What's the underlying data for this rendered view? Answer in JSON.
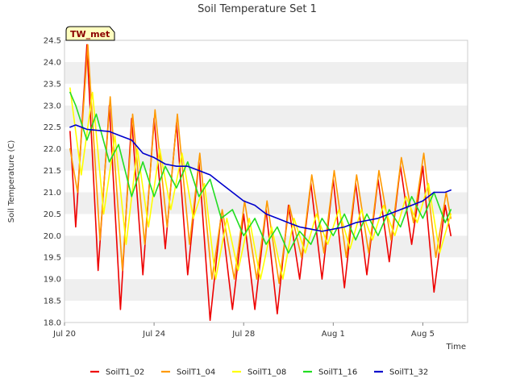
{
  "chart_data": {
    "type": "line",
    "title": "Soil Temperature Set 1",
    "xlabel": "Time",
    "ylabel": "Soil Temperature (C)",
    "badge": "TW_met",
    "xlim": [
      "2021-07-20",
      "2021-08-07"
    ],
    "ylim": [
      18.0,
      24.5
    ],
    "yticks": [
      18.0,
      18.5,
      19.0,
      19.5,
      20.0,
      20.5,
      21.0,
      21.5,
      22.0,
      22.5,
      23.0,
      23.5,
      24.0,
      24.5
    ],
    "xticks": [
      {
        "date": "2021-07-20",
        "label": "Jul 20"
      },
      {
        "date": "2021-07-24",
        "label": "Jul 24"
      },
      {
        "date": "2021-07-28",
        "label": "Jul 28"
      },
      {
        "date": "2021-08-01",
        "label": "Aug 1"
      },
      {
        "date": "2021-08-05",
        "label": "Aug 5"
      }
    ],
    "grid": "horizontal bands",
    "legend_position": "bottom",
    "series": [
      {
        "name": "SoilT1_02",
        "color": "#ee0000",
        "points": [
          [
            "2021-07-20 06:00",
            22.4
          ],
          [
            "2021-07-20 12:00",
            20.2
          ],
          [
            "2021-07-21 00:00",
            24.4
          ],
          [
            "2021-07-21 12:00",
            19.2
          ],
          [
            "2021-07-22 00:00",
            23.0
          ],
          [
            "2021-07-22 12:00",
            18.3
          ],
          [
            "2021-07-23 00:00",
            22.7
          ],
          [
            "2021-07-23 12:00",
            19.1
          ],
          [
            "2021-07-24 00:00",
            22.7
          ],
          [
            "2021-07-24 12:00",
            19.7
          ],
          [
            "2021-07-25 00:00",
            22.6
          ],
          [
            "2021-07-25 12:00",
            19.1
          ],
          [
            "2021-07-26 00:00",
            21.7
          ],
          [
            "2021-07-26 12:00",
            18.05
          ],
          [
            "2021-07-27 00:00",
            20.5
          ],
          [
            "2021-07-27 12:00",
            18.3
          ],
          [
            "2021-07-28 00:00",
            20.5
          ],
          [
            "2021-07-28 12:00",
            18.3
          ],
          [
            "2021-07-29 00:00",
            20.6
          ],
          [
            "2021-07-29 12:00",
            18.2
          ],
          [
            "2021-07-30 00:00",
            20.7
          ],
          [
            "2021-07-30 12:00",
            19.0
          ],
          [
            "2021-07-31 00:00",
            21.2
          ],
          [
            "2021-07-31 12:00",
            19.0
          ],
          [
            "2021-08-01 00:00",
            21.3
          ],
          [
            "2021-08-01 12:00",
            18.8
          ],
          [
            "2021-08-02 00:00",
            21.2
          ],
          [
            "2021-08-02 12:00",
            19.1
          ],
          [
            "2021-08-03 00:00",
            21.3
          ],
          [
            "2021-08-03 12:00",
            19.4
          ],
          [
            "2021-08-04 00:00",
            21.6
          ],
          [
            "2021-08-04 12:00",
            19.8
          ],
          [
            "2021-08-05 00:00",
            21.6
          ],
          [
            "2021-08-05 12:00",
            18.7
          ],
          [
            "2021-08-06 00:00",
            20.7
          ],
          [
            "2021-08-06 06:00",
            20.0
          ]
        ]
      },
      {
        "name": "SoilT1_04",
        "color": "#ff9900",
        "points": [
          [
            "2021-07-20 06:00",
            22.0
          ],
          [
            "2021-07-20 14:00",
            21.0
          ],
          [
            "2021-07-21 01:00",
            24.4
          ],
          [
            "2021-07-21 14:00",
            19.9
          ],
          [
            "2021-07-22 01:00",
            23.2
          ],
          [
            "2021-07-22 14:00",
            19.2
          ],
          [
            "2021-07-23 01:00",
            22.8
          ],
          [
            "2021-07-23 14:00",
            19.8
          ],
          [
            "2021-07-24 01:00",
            22.9
          ],
          [
            "2021-07-24 14:00",
            20.2
          ],
          [
            "2021-07-25 01:00",
            22.8
          ],
          [
            "2021-07-25 14:00",
            19.8
          ],
          [
            "2021-07-26 01:00",
            21.9
          ],
          [
            "2021-07-26 14:00",
            19.0
          ],
          [
            "2021-07-27 01:00",
            20.6
          ],
          [
            "2021-07-27 14:00",
            19.0
          ],
          [
            "2021-07-28 01:00",
            20.8
          ],
          [
            "2021-07-28 14:00",
            19.0
          ],
          [
            "2021-07-29 01:00",
            20.8
          ],
          [
            "2021-07-29 14:00",
            18.9
          ],
          [
            "2021-07-30 01:00",
            20.7
          ],
          [
            "2021-07-30 14:00",
            19.5
          ],
          [
            "2021-07-31 01:00",
            21.4
          ],
          [
            "2021-07-31 14:00",
            19.6
          ],
          [
            "2021-08-01 01:00",
            21.5
          ],
          [
            "2021-08-01 14:00",
            19.5
          ],
          [
            "2021-08-02 01:00",
            21.4
          ],
          [
            "2021-08-02 14:00",
            19.6
          ],
          [
            "2021-08-03 01:00",
            21.5
          ],
          [
            "2021-08-03 14:00",
            19.9
          ],
          [
            "2021-08-04 01:00",
            21.8
          ],
          [
            "2021-08-04 14:00",
            20.3
          ],
          [
            "2021-08-05 01:00",
            21.9
          ],
          [
            "2021-08-05 14:00",
            19.5
          ],
          [
            "2021-08-06 01:00",
            21.0
          ],
          [
            "2021-08-06 06:00",
            20.4
          ]
        ]
      },
      {
        "name": "SoilT1_08",
        "color": "#ffff00",
        "points": [
          [
            "2021-07-20 06:00",
            23.4
          ],
          [
            "2021-07-20 18:00",
            21.4
          ],
          [
            "2021-07-21 06:00",
            23.3
          ],
          [
            "2021-07-21 18:00",
            20.5
          ],
          [
            "2021-07-22 06:00",
            22.3
          ],
          [
            "2021-07-22 18:00",
            19.8
          ],
          [
            "2021-07-23 06:00",
            22.0
          ],
          [
            "2021-07-23 18:00",
            20.2
          ],
          [
            "2021-07-24 06:00",
            22.0
          ],
          [
            "2021-07-24 18:00",
            20.6
          ],
          [
            "2021-07-25 06:00",
            21.9
          ],
          [
            "2021-07-25 18:00",
            20.4
          ],
          [
            "2021-07-26 06:00",
            21.2
          ],
          [
            "2021-07-26 18:00",
            19.0
          ],
          [
            "2021-07-27 06:00",
            20.4
          ],
          [
            "2021-07-27 18:00",
            19.2
          ],
          [
            "2021-07-28 06:00",
            20.4
          ],
          [
            "2021-07-28 18:00",
            19.0
          ],
          [
            "2021-07-29 06:00",
            20.2
          ],
          [
            "2021-07-29 18:00",
            19.0
          ],
          [
            "2021-07-30 06:00",
            20.4
          ],
          [
            "2021-07-30 18:00",
            19.6
          ],
          [
            "2021-07-31 06:00",
            20.5
          ],
          [
            "2021-07-31 18:00",
            19.8
          ],
          [
            "2021-08-01 06:00",
            20.6
          ],
          [
            "2021-08-01 18:00",
            19.7
          ],
          [
            "2021-08-02 06:00",
            20.6
          ],
          [
            "2021-08-02 18:00",
            19.9
          ],
          [
            "2021-08-03 06:00",
            20.7
          ],
          [
            "2021-08-03 18:00",
            20.0
          ],
          [
            "2021-08-04 06:00",
            20.9
          ],
          [
            "2021-08-04 18:00",
            20.3
          ],
          [
            "2021-08-05 06:00",
            21.2
          ],
          [
            "2021-08-05 18:00",
            19.6
          ],
          [
            "2021-08-06 06:00",
            20.5
          ]
        ]
      },
      {
        "name": "SoilT1_16",
        "color": "#22dd22",
        "points": [
          [
            "2021-07-20 06:00",
            23.3
          ],
          [
            "2021-07-20 12:00",
            23.0
          ],
          [
            "2021-07-21 00:00",
            22.2
          ],
          [
            "2021-07-21 10:00",
            22.8
          ],
          [
            "2021-07-22 00:00",
            21.7
          ],
          [
            "2021-07-22 10:00",
            22.1
          ],
          [
            "2021-07-23 00:00",
            20.9
          ],
          [
            "2021-07-23 12:00",
            21.7
          ],
          [
            "2021-07-24 00:00",
            20.9
          ],
          [
            "2021-07-24 12:00",
            21.6
          ],
          [
            "2021-07-25 00:00",
            21.1
          ],
          [
            "2021-07-25 12:00",
            21.7
          ],
          [
            "2021-07-26 00:00",
            20.9
          ],
          [
            "2021-07-26 12:00",
            21.3
          ],
          [
            "2021-07-27 00:00",
            20.4
          ],
          [
            "2021-07-27 12:00",
            20.6
          ],
          [
            "2021-07-28 00:00",
            20.0
          ],
          [
            "2021-07-28 12:00",
            20.4
          ],
          [
            "2021-07-29 00:00",
            19.8
          ],
          [
            "2021-07-29 12:00",
            20.2
          ],
          [
            "2021-07-30 00:00",
            19.6
          ],
          [
            "2021-07-30 12:00",
            20.1
          ],
          [
            "2021-07-31 00:00",
            19.8
          ],
          [
            "2021-07-31 12:00",
            20.4
          ],
          [
            "2021-08-01 00:00",
            20.0
          ],
          [
            "2021-08-01 12:00",
            20.5
          ],
          [
            "2021-08-02 00:00",
            19.9
          ],
          [
            "2021-08-02 12:00",
            20.5
          ],
          [
            "2021-08-03 00:00",
            20.0
          ],
          [
            "2021-08-03 12:00",
            20.6
          ],
          [
            "2021-08-04 00:00",
            20.2
          ],
          [
            "2021-08-04 12:00",
            20.9
          ],
          [
            "2021-08-05 00:00",
            20.4
          ],
          [
            "2021-08-05 12:00",
            21.0
          ],
          [
            "2021-08-06 00:00",
            20.3
          ],
          [
            "2021-08-06 06:00",
            20.6
          ]
        ]
      },
      {
        "name": "SoilT1_32",
        "color": "#0000cc",
        "points": [
          [
            "2021-07-20 06:00",
            22.5
          ],
          [
            "2021-07-20 12:00",
            22.55
          ],
          [
            "2021-07-21 00:00",
            22.45
          ],
          [
            "2021-07-22 00:00",
            22.4
          ],
          [
            "2021-07-22 12:00",
            22.3
          ],
          [
            "2021-07-23 00:00",
            22.2
          ],
          [
            "2021-07-23 12:00",
            21.9
          ],
          [
            "2021-07-24 00:00",
            21.8
          ],
          [
            "2021-07-24 12:00",
            21.65
          ],
          [
            "2021-07-25 00:00",
            21.6
          ],
          [
            "2021-07-25 12:00",
            21.6
          ],
          [
            "2021-07-26 00:00",
            21.5
          ],
          [
            "2021-07-26 12:00",
            21.4
          ],
          [
            "2021-07-27 00:00",
            21.2
          ],
          [
            "2021-07-27 12:00",
            21.0
          ],
          [
            "2021-07-28 00:00",
            20.8
          ],
          [
            "2021-07-28 12:00",
            20.7
          ],
          [
            "2021-07-29 00:00",
            20.5
          ],
          [
            "2021-07-29 12:00",
            20.4
          ],
          [
            "2021-07-30 00:00",
            20.3
          ],
          [
            "2021-07-30 12:00",
            20.2
          ],
          [
            "2021-07-31 00:00",
            20.15
          ],
          [
            "2021-07-31 12:00",
            20.1
          ],
          [
            "2021-08-01 00:00",
            20.15
          ],
          [
            "2021-08-01 12:00",
            20.2
          ],
          [
            "2021-08-02 00:00",
            20.3
          ],
          [
            "2021-08-02 12:00",
            20.35
          ],
          [
            "2021-08-03 00:00",
            20.4
          ],
          [
            "2021-08-03 12:00",
            20.5
          ],
          [
            "2021-08-04 00:00",
            20.6
          ],
          [
            "2021-08-04 12:00",
            20.7
          ],
          [
            "2021-08-05 00:00",
            20.8
          ],
          [
            "2021-08-05 12:00",
            21.0
          ],
          [
            "2021-08-06 00:00",
            21.0
          ],
          [
            "2021-08-06 06:00",
            21.05
          ]
        ]
      }
    ]
  }
}
